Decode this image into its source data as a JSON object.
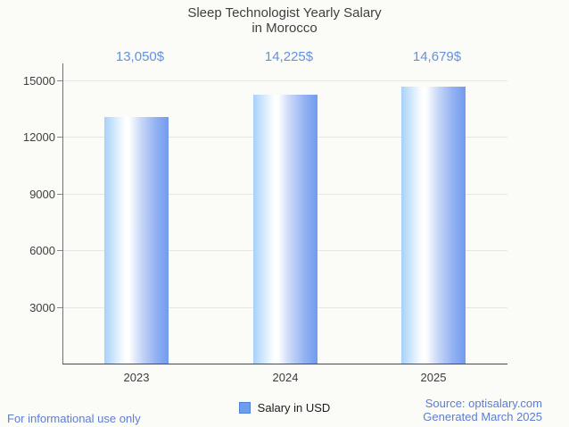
{
  "title": {
    "line1": "Sleep Technologist Yearly Salary",
    "line2": "in Morocco"
  },
  "chart_data": {
    "type": "bar",
    "title": "Sleep Technologist Yearly Salary in Morocco",
    "categories": [
      "2023",
      "2024",
      "2025"
    ],
    "series": [
      {
        "name": "Salary in USD",
        "values": [
          13050,
          14225,
          14679
        ]
      }
    ],
    "value_labels": [
      "13,050$",
      "14,225$",
      "14,679$"
    ],
    "yticks": [
      3000,
      6000,
      9000,
      12000,
      15000
    ],
    "ytick_labels": [
      "3000",
      "6000",
      "9000",
      "12000",
      "15000"
    ],
    "ylim": [
      0,
      15000
    ],
    "xlabel": "",
    "ylabel": "",
    "grid": true,
    "legend_position": "bottom"
  },
  "legend": {
    "swatch_color": "#6d9eeb",
    "swatch_border": "#5182d6"
  },
  "footer": {
    "left": "For informational use only",
    "source": "Source: optisalary.com",
    "generated": "Generated March 2025"
  },
  "colors": {
    "value_label_blue": "#6490dd",
    "footer_blue": "#5d7dd4",
    "bar_gradient_left": "#a7d1fa",
    "bar_gradient_mid": "#ffffff",
    "bar_gradient_right": "#719bee",
    "gridline": "#e7e6e2",
    "axis": "#6f6f6f",
    "title_text": "#3f3f3f"
  }
}
